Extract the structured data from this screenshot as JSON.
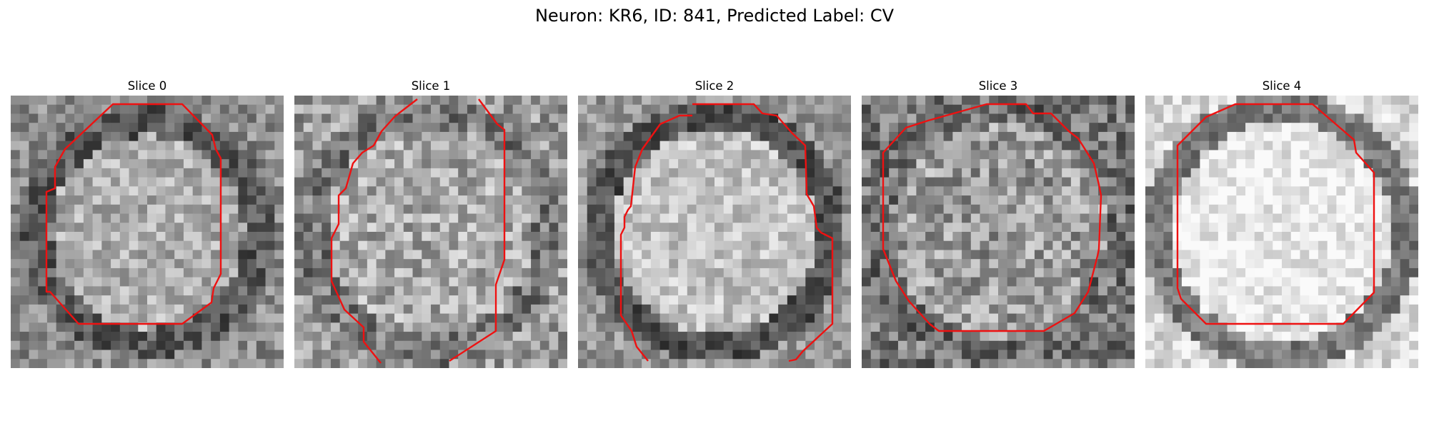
{
  "figure": {
    "title": "Neuron: KR6, ID: 841, Predicted Label: CV"
  },
  "panels": [
    {
      "title": "Slice 0",
      "seed": 11,
      "bg": 140,
      "inner": 175,
      "ring": 90,
      "ringR": 0.42,
      "contrast": 45
    },
    {
      "title": "Slice 1",
      "seed": 23,
      "bg": 155,
      "inner": 170,
      "ring": 120,
      "ringR": 0.45,
      "contrast": 55
    },
    {
      "title": "Slice 2",
      "seed": 37,
      "bg": 150,
      "inner": 195,
      "ring": 80,
      "ringR": 0.44,
      "contrast": 40
    },
    {
      "title": "Slice 3",
      "seed": 41,
      "bg": 120,
      "inner": 155,
      "ring": 110,
      "ringR": 0.46,
      "contrast": 60
    },
    {
      "title": "Slice 4",
      "seed": 53,
      "bg": 215,
      "inner": 235,
      "ring": 120,
      "ringR": 0.47,
      "contrast": 35
    }
  ],
  "colors": {
    "contour": "#ee1111",
    "background": "#ffffff"
  }
}
